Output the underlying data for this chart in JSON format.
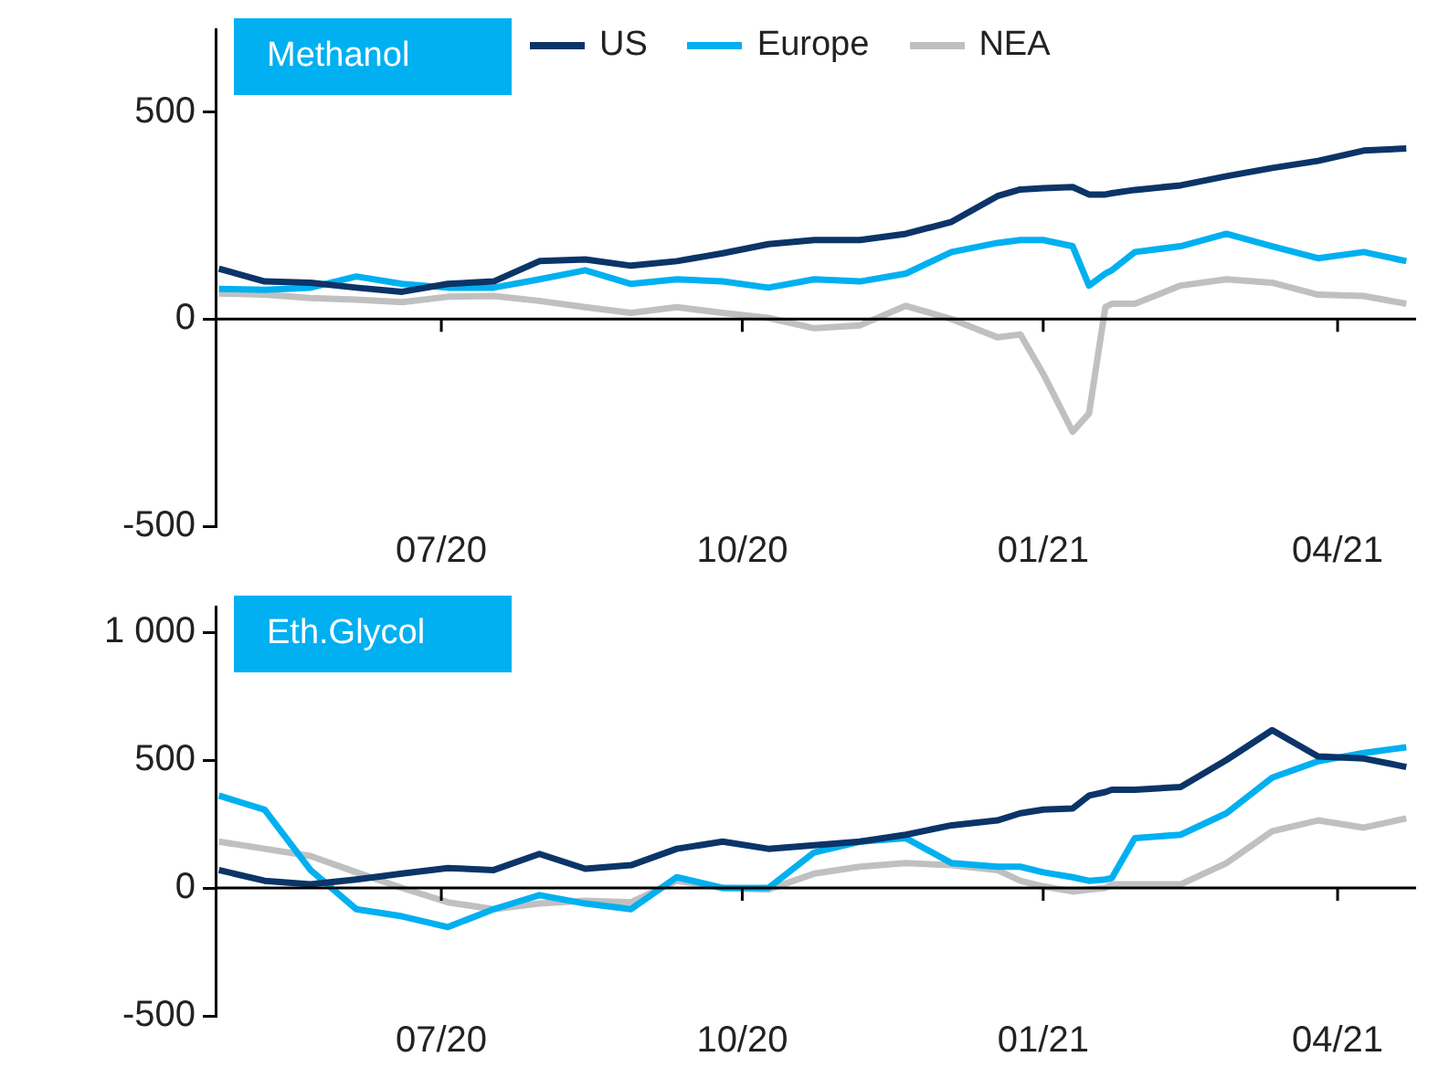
{
  "chart_data": [
    {
      "type": "line",
      "title": "Methanol",
      "x": [
        "2020-04-24",
        "2020-05-08",
        "2020-05-22",
        "2020-06-05",
        "2020-06-19",
        "2020-07-03",
        "2020-07-17",
        "2020-07-31",
        "2020-08-14",
        "2020-08-28",
        "2020-09-11",
        "2020-09-25",
        "2020-10-09",
        "2020-10-23",
        "2020-11-06",
        "2020-11-20",
        "2020-12-04",
        "2020-12-18",
        "2020-12-25",
        "2021-01-01",
        "2021-01-10",
        "2021-01-15",
        "2021-01-20",
        "2021-01-22",
        "2021-01-29",
        "2021-02-12",
        "2021-02-26",
        "2021-03-12",
        "2021-03-26",
        "2021-04-09",
        "2021-04-22"
      ],
      "series": [
        {
          "name": "US",
          "color": "#0b3468",
          "values": [
            122,
            91,
            88,
            76,
            66,
            85,
            91,
            140,
            144,
            129,
            140,
            159,
            181,
            191,
            191,
            206,
            235,
            297,
            313,
            316,
            319,
            301,
            301,
            304,
            312,
            323,
            345,
            365,
            382,
            407,
            412
          ]
        },
        {
          "name": "Europe",
          "color": "#00b0f0",
          "values": [
            73,
            71,
            76,
            103,
            85,
            76,
            76,
            96,
            118,
            85,
            96,
            91,
            76,
            96,
            91,
            110,
            162,
            184,
            191,
            191,
            176,
            81,
            110,
            118,
            162,
            176,
            206,
            176,
            147,
            162,
            140
          ]
        },
        {
          "name": "NEA",
          "color": "#c0c0c0",
          "values": [
            62,
            59,
            51,
            47,
            41,
            54,
            56,
            44,
            29,
            15,
            29,
            15,
            3,
            -22,
            -15,
            32,
            0,
            -44,
            -37,
            -132,
            -272,
            -228,
            29,
            37,
            37,
            81,
            96,
            88,
            59,
            56,
            37
          ]
        }
      ],
      "xlim": [
        "2020-04-23",
        "2021-04-25"
      ],
      "xticks": [
        {
          "value": "2020-07-01",
          "label": "07/20"
        },
        {
          "value": "2020-10-01",
          "label": "10/20"
        },
        {
          "value": "2021-01-01",
          "label": "01/21"
        },
        {
          "value": "2021-04-01",
          "label": "04/21"
        }
      ],
      "ylim": [
        -500,
        700
      ],
      "yticks": [
        -500,
        0,
        500
      ],
      "ref_lines": [
        {
          "axis": "y",
          "value": 0,
          "color": "#000000"
        }
      ],
      "grid": false,
      "legend": "top",
      "marker": "none",
      "line_style": "solid"
    },
    {
      "type": "line",
      "title": "Eth.Glycol",
      "x": [
        "2020-04-24",
        "2020-05-08",
        "2020-05-22",
        "2020-06-05",
        "2020-06-19",
        "2020-07-03",
        "2020-07-17",
        "2020-07-31",
        "2020-08-14",
        "2020-08-28",
        "2020-09-11",
        "2020-09-25",
        "2020-10-09",
        "2020-10-23",
        "2020-11-06",
        "2020-11-20",
        "2020-12-04",
        "2020-12-18",
        "2020-12-25",
        "2021-01-01",
        "2021-01-10",
        "2021-01-15",
        "2021-01-20",
        "2021-01-22",
        "2021-01-29",
        "2021-02-12",
        "2021-02-26",
        "2021-03-12",
        "2021-03-26",
        "2021-04-09",
        "2021-04-22"
      ],
      "series": [
        {
          "color": "#0b3468",
          "values": [
            70,
            28,
            14,
            33,
            56,
            78,
            70,
            133,
            75,
            89,
            153,
            181,
            153,
            167,
            181,
            208,
            245,
            264,
            292,
            306,
            311,
            361,
            375,
            384,
            384,
            395,
            500,
            617,
            514,
            506,
            473
          ]
        },
        {
          "color": "#00b0f0",
          "values": [
            361,
            306,
            70,
            -83,
            -111,
            -153,
            -83,
            -28,
            -61,
            -83,
            42,
            0,
            0,
            139,
            181,
            195,
            97,
            83,
            83,
            61,
            42,
            28,
            33,
            39,
            195,
            208,
            292,
            431,
            495,
            528,
            550
          ]
        },
        {
          "color": "#c0c0c0",
          "values": [
            181,
            153,
            125,
            61,
            0,
            -56,
            -83,
            -61,
            -50,
            -56,
            28,
            0,
            -6,
            56,
            83,
            97,
            89,
            70,
            28,
            6,
            -14,
            -6,
            0,
            14,
            14,
            14,
            97,
            222,
            264,
            236,
            272
          ]
        }
      ],
      "xlim": [
        "2020-04-23",
        "2021-04-25"
      ],
      "xticks": [
        {
          "value": "2020-07-01",
          "label": "07/20"
        },
        {
          "value": "2020-10-01",
          "label": "10/20"
        },
        {
          "value": "2021-01-01",
          "label": "01/21"
        },
        {
          "value": "2021-04-01",
          "label": "04/21"
        }
      ],
      "ylim": [
        -500,
        1100
      ],
      "yticks": [
        -500,
        0,
        500,
        {
          "value": 1000,
          "label": "1 000"
        }
      ],
      "ref_lines": [
        {
          "axis": "y",
          "value": 0,
          "color": "#000000"
        }
      ],
      "grid": false,
      "legend": false,
      "marker": "none",
      "line_style": "solid"
    }
  ]
}
